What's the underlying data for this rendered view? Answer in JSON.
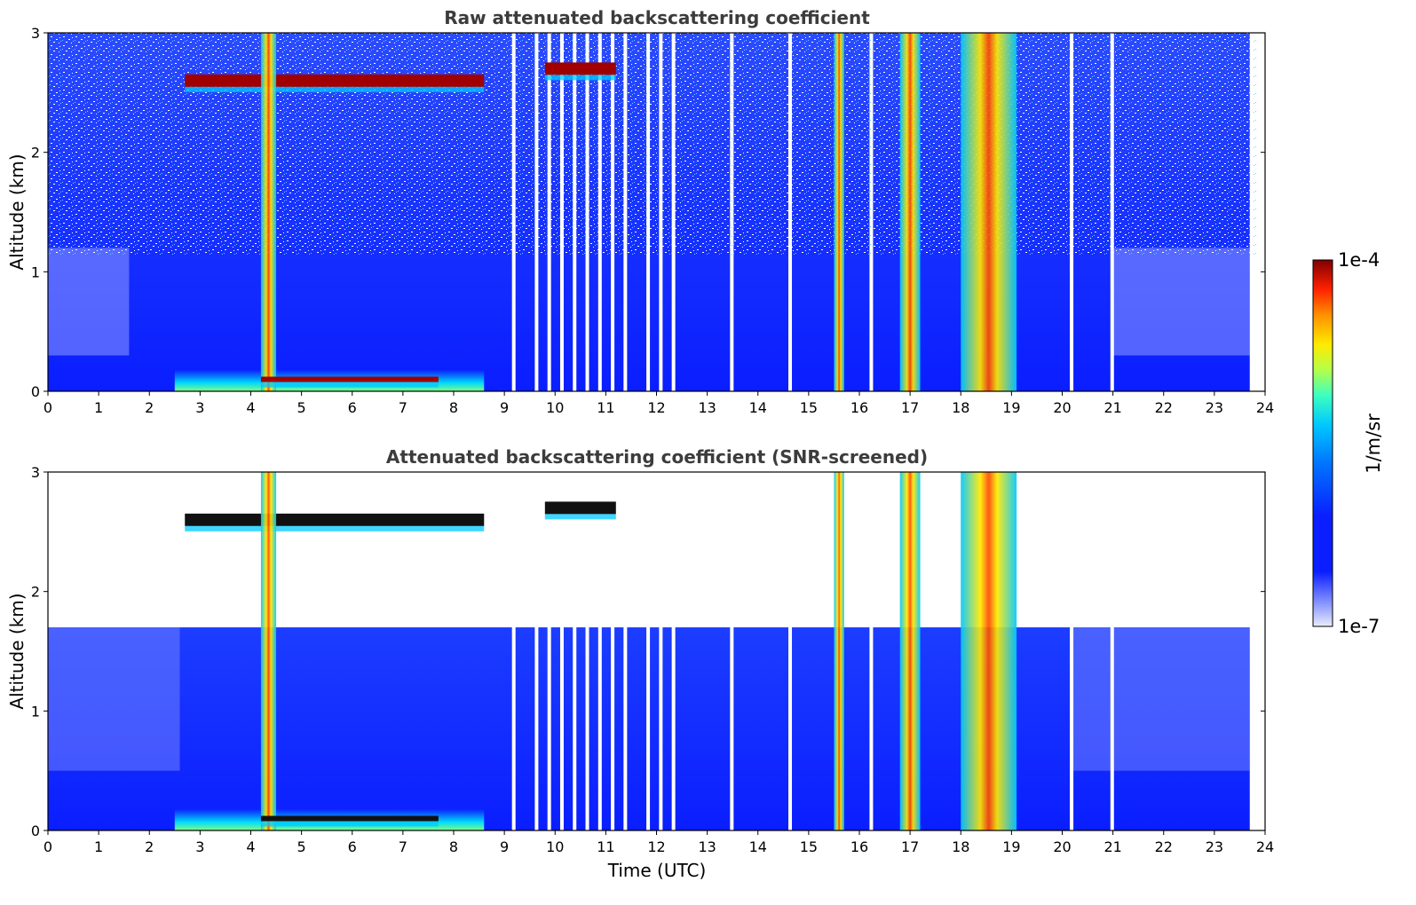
{
  "colors": {
    "background": "#ffffff",
    "low": "#0a1eff",
    "high": "#7f0000",
    "saturated": "#000000"
  },
  "colorbar": {
    "label": "1/m/sr",
    "max_label": "1e-4",
    "min_label": "1e-7",
    "scale": "log",
    "colormap": "jet"
  },
  "chart_data": [
    {
      "type": "heatmap",
      "title": "Raw attenuated backscattering coefficient",
      "xlabel": "",
      "ylabel": "Altitude (km)",
      "xlim": [
        0,
        24
      ],
      "ylim": [
        0,
        3
      ],
      "xticks": [
        "0",
        "1",
        "2",
        "3",
        "4",
        "5",
        "6",
        "7",
        "8",
        "9",
        "10",
        "11",
        "12",
        "13",
        "14",
        "15",
        "16",
        "17",
        "18",
        "19",
        "20",
        "21",
        "22",
        "23",
        "24"
      ],
      "yticks": [
        "0",
        "1",
        "2",
        "3"
      ],
      "features": [
        {
          "kind": "cloud layer",
          "t_start": 2.7,
          "t_end": 8.6,
          "alt_km": 2.6
        },
        {
          "kind": "precipitation",
          "t_start": 4.2,
          "t_end": 4.5
        },
        {
          "kind": "aerosol layer",
          "t_start": 4.2,
          "t_end": 7.7,
          "alt_km": 0.1
        },
        {
          "kind": "cloud",
          "t_start": 9.8,
          "t_end": 11.2,
          "alt_km": 2.7
        },
        {
          "kind": "precipitation",
          "t_start": 15.5,
          "t_end": 15.7
        },
        {
          "kind": "precipitation",
          "t_start": 16.8,
          "t_end": 17.2
        },
        {
          "kind": "precipitation",
          "t_start": 18.0,
          "t_end": 19.1
        }
      ]
    },
    {
      "type": "heatmap",
      "title": "Attenuated backscattering coefficient (SNR-screened)",
      "xlabel": "Time (UTC)",
      "ylabel": "Altitude (km)",
      "xlim": [
        0,
        24
      ],
      "ylim": [
        0,
        3
      ],
      "xticks": [
        "0",
        "1",
        "2",
        "3",
        "4",
        "5",
        "6",
        "7",
        "8",
        "9",
        "10",
        "11",
        "12",
        "13",
        "14",
        "15",
        "16",
        "17",
        "18",
        "19",
        "20",
        "21",
        "22",
        "23",
        "24"
      ],
      "yticks": [
        "0",
        "1",
        "2",
        "3"
      ],
      "screened_top_km": 1.7
    }
  ]
}
